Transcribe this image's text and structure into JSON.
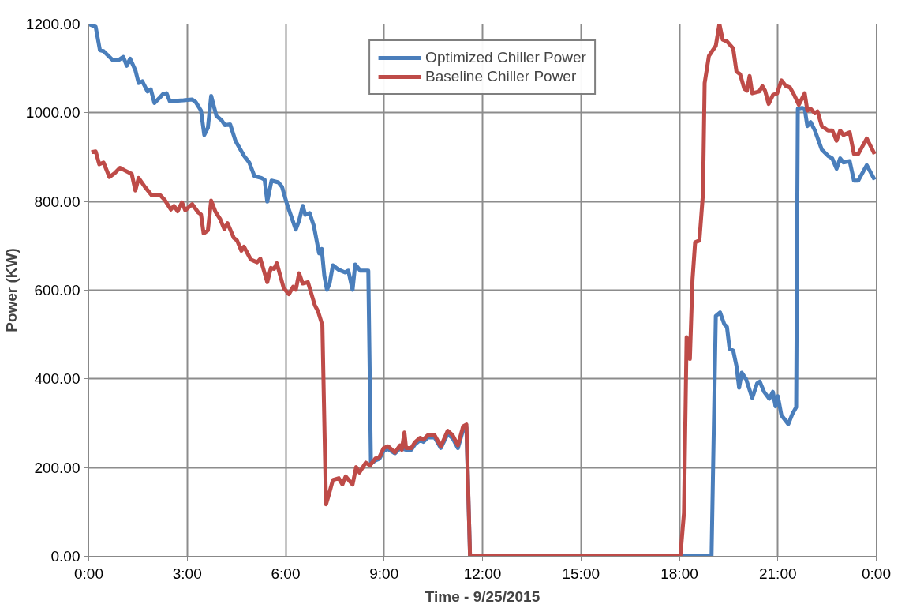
{
  "chart_data": {
    "type": "line",
    "xlabel": "Time - 9/25/2015",
    "ylabel": "Power (KW)",
    "xlim": [
      0,
      24
    ],
    "ylim": [
      0,
      1200
    ],
    "xticks": [
      {
        "value": 0,
        "label": "0:00"
      },
      {
        "value": 3,
        "label": "3:00"
      },
      {
        "value": 6,
        "label": "6:00"
      },
      {
        "value": 9,
        "label": "9:00"
      },
      {
        "value": 12,
        "label": "12:00"
      },
      {
        "value": 15,
        "label": "15:00"
      },
      {
        "value": 18,
        "label": "18:00"
      },
      {
        "value": 21,
        "label": "21:00"
      },
      {
        "value": 24,
        "label": "0:00"
      }
    ],
    "yticks": [
      {
        "value": 0,
        "label": "0.00"
      },
      {
        "value": 200,
        "label": "200.00"
      },
      {
        "value": 400,
        "label": "400.00"
      },
      {
        "value": 600,
        "label": "600.00"
      },
      {
        "value": 800,
        "label": "800.00"
      },
      {
        "value": 1000,
        "label": "1000.00"
      },
      {
        "value": 1200,
        "label": "1200.00"
      }
    ],
    "grid": true,
    "legend": "top",
    "marker": "none",
    "line_style": "solid",
    "series": [
      {
        "name": "Optimized Chiller Power",
        "color": "#4a7ebb",
        "x": [
          0,
          0.21,
          0.34,
          0.45,
          0.74,
          0.89,
          1.05,
          1.16,
          1.26,
          1.42,
          1.52,
          1.63,
          1.79,
          1.89,
          2.0,
          2.16,
          2.26,
          2.37,
          2.47,
          2.89,
          3.15,
          3.26,
          3.42,
          3.52,
          3.63,
          3.73,
          3.89,
          4.05,
          4.15,
          4.31,
          4.47,
          4.73,
          4.89,
          5.05,
          5.26,
          5.36,
          5.44,
          5.57,
          5.78,
          5.89,
          6.05,
          6.31,
          6.41,
          6.52,
          6.6,
          6.73,
          6.86,
          7.02,
          7.1,
          7.18,
          7.26,
          7.34,
          7.44,
          7.62,
          7.81,
          7.91,
          8.04,
          8.12,
          8.28,
          8.52,
          8.6,
          8.73,
          8.86,
          8.99,
          9.12,
          9.33,
          9.49,
          9.67,
          9.83,
          9.94,
          10.1,
          10.2,
          10.33,
          10.54,
          10.73,
          10.94,
          11.09,
          11.25,
          11.41,
          11.51,
          11.62,
          18.98,
          19.11,
          19.24,
          19.37,
          19.45,
          19.53,
          19.64,
          19.74,
          19.82,
          19.9,
          20.03,
          20.22,
          20.37,
          20.45,
          20.58,
          20.74,
          20.85,
          20.93,
          21.0,
          21.11,
          21.32,
          21.45,
          21.56,
          21.61,
          21.74,
          21.82,
          21.9,
          22.0,
          22.13,
          22.34,
          22.53,
          22.66,
          22.79,
          22.9,
          23.0,
          23.19,
          23.32,
          23.45,
          23.71,
          23.95
        ],
        "values": [
          1200,
          1194,
          1141,
          1139,
          1118,
          1118,
          1126,
          1106,
          1122,
          1096,
          1067,
          1071,
          1048,
          1053,
          1022,
          1034,
          1042,
          1044,
          1026,
          1028,
          1030,
          1024,
          1005,
          950,
          966,
          1038,
          993,
          983,
          972,
          974,
          937,
          903,
          888,
          857,
          853,
          849,
          800,
          847,
          843,
          833,
          792,
          737,
          757,
          790,
          770,
          774,
          745,
          683,
          693,
          632,
          601,
          615,
          656,
          646,
          640,
          644,
          601,
          658,
          644,
          644,
          209,
          216,
          220,
          238,
          242,
          232,
          244,
          240,
          240,
          252,
          262,
          258,
          268,
          268,
          244,
          276,
          266,
          244,
          285,
          290,
          0,
          0,
          542,
          550,
          523,
          517,
          468,
          464,
          429,
          380,
          414,
          400,
          357,
          390,
          394,
          371,
          355,
          371,
          338,
          361,
          318,
          298,
          322,
          336,
          1009,
          1011,
          1009,
          970,
          979,
          960,
          917,
          903,
          897,
          874,
          897,
          888,
          891,
          847,
          847,
          882,
          849
        ]
      },
      {
        "name": "Baseline Chiller Power",
        "color": "#be4b48",
        "x": [
          0.08,
          0.21,
          0.32,
          0.45,
          0.63,
          0.79,
          0.95,
          1.1,
          1.31,
          1.42,
          1.52,
          1.71,
          1.92,
          2.18,
          2.31,
          2.5,
          2.6,
          2.71,
          2.84,
          2.94,
          3.15,
          3.34,
          3.42,
          3.5,
          3.63,
          3.73,
          3.86,
          4.0,
          4.13,
          4.23,
          4.42,
          4.52,
          4.65,
          4.73,
          4.94,
          5.13,
          5.23,
          5.44,
          5.55,
          5.65,
          5.73,
          5.94,
          6.1,
          6.23,
          6.31,
          6.41,
          6.52,
          6.68,
          6.89,
          6.99,
          7.12,
          7.23,
          7.31,
          7.44,
          7.62,
          7.73,
          7.83,
          8.04,
          8.15,
          8.25,
          8.44,
          8.57,
          8.73,
          8.86,
          8.99,
          9.12,
          9.33,
          9.49,
          9.54,
          9.62,
          9.67,
          9.83,
          9.94,
          10.1,
          10.2,
          10.33,
          10.54,
          10.73,
          10.94,
          11.09,
          11.25,
          11.41,
          11.51,
          11.62,
          18.03,
          18.14,
          18.22,
          18.32,
          18.4,
          18.48,
          18.61,
          18.72,
          18.77,
          18.9,
          19.11,
          19.22,
          19.32,
          19.45,
          19.64,
          19.74,
          19.85,
          19.98,
          20.06,
          20.14,
          20.22,
          20.43,
          20.53,
          20.61,
          20.72,
          20.85,
          20.98,
          21.11,
          21.24,
          21.37,
          21.5,
          21.64,
          21.82,
          21.9,
          22.0,
          22.13,
          22.21,
          22.34,
          22.53,
          22.66,
          22.71,
          22.79,
          22.9,
          23.0,
          23.19,
          23.32,
          23.45,
          23.71,
          23.95
        ],
        "values": [
          911,
          913,
          884,
          888,
          855,
          864,
          876,
          870,
          862,
          825,
          853,
          833,
          814,
          814,
          804,
          782,
          790,
          778,
          798,
          780,
          794,
          775,
          771,
          728,
          735,
          802,
          777,
          761,
          738,
          751,
          718,
          712,
          689,
          698,
          669,
          663,
          671,
          618,
          650,
          648,
          661,
          605,
          591,
          608,
          601,
          638,
          615,
          618,
          566,
          552,
          521,
          117,
          137,
          172,
          176,
          162,
          180,
          162,
          201,
          189,
          211,
          205,
          220,
          224,
          244,
          248,
          234,
          250,
          240,
          279,
          244,
          244,
          257,
          267,
          263,
          273,
          273,
          248,
          283,
          273,
          250,
          293,
          297,
          0,
          0,
          98,
          494,
          445,
          624,
          708,
          712,
          819,
          1067,
          1128,
          1151,
          1200,
          1165,
          1161,
          1145,
          1093,
          1087,
          1054,
          1050,
          1083,
          1044,
          1048,
          1060,
          1050,
          1020,
          1040,
          1044,
          1073,
          1061,
          1057,
          1040,
          1018,
          1044,
          1005,
          1009,
          999,
          1003,
          970,
          960,
          960,
          952,
          937,
          960,
          950,
          956,
          907,
          907,
          942,
          907
        ]
      }
    ]
  }
}
